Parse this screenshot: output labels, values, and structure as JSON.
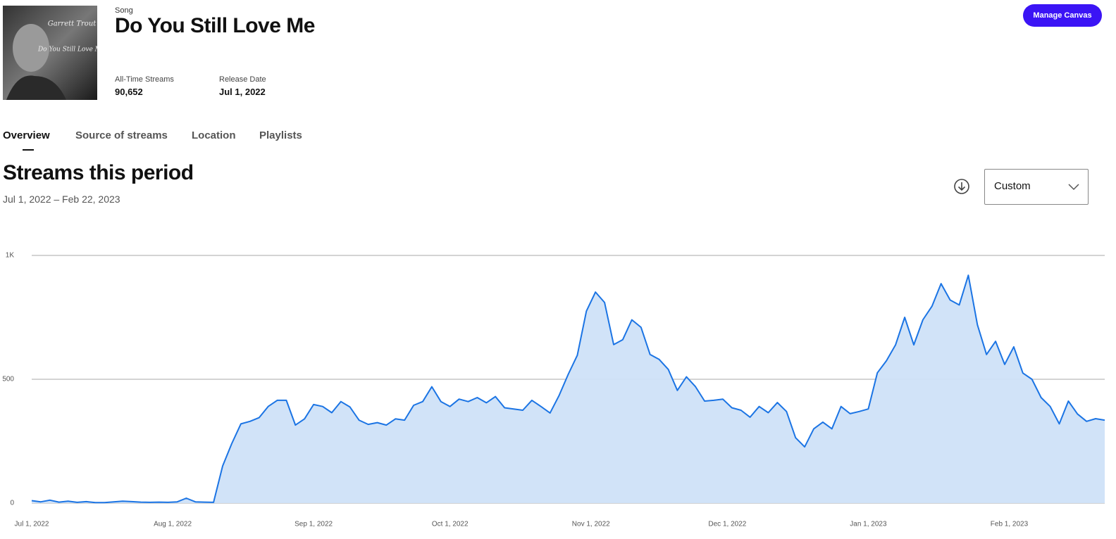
{
  "header": {
    "type_label": "Song",
    "title": "Do You Still Love Me",
    "stats": [
      {
        "label": "All-Time Streams",
        "value": "90,652"
      },
      {
        "label": "Release Date",
        "value": "Jul 1, 2022"
      }
    ],
    "button": "Manage Canvas",
    "album_art": {
      "artist": "Garrett Trout",
      "title": "Do You Still Love Me?"
    }
  },
  "tabs": [
    "Overview",
    "Source of streams",
    "Location",
    "Playlists"
  ],
  "section": {
    "title": "Streams this period",
    "date_range": "Jul 1, 2022 – Feb 22, 2023",
    "range_select": "Custom"
  },
  "chart_data": {
    "type": "area",
    "color": "#1b74e4",
    "area_color": "#cfe2f8",
    "grid": true,
    "xlim": [
      "2022-07-01",
      "2023-02-22"
    ],
    "xticks": [
      {
        "value": "2022-07-01",
        "label": "Jul 1, 2022"
      },
      {
        "value": "2022-08-01",
        "label": "Aug 1, 2022"
      },
      {
        "value": "2022-09-01",
        "label": "Sep 1, 2022"
      },
      {
        "value": "2022-10-01",
        "label": "Oct 1, 2022"
      },
      {
        "value": "2022-11-01",
        "label": "Nov 1, 2022"
      },
      {
        "value": "2022-12-01",
        "label": "Dec 1, 2022"
      },
      {
        "value": "2023-01-01",
        "label": "Jan 1, 2023"
      },
      {
        "value": "2023-02-01",
        "label": "Feb 1, 2023"
      }
    ],
    "ylim": [
      0,
      1000
    ],
    "yticks": [
      0,
      500,
      {
        "value": 1000,
        "label": "1K"
      }
    ],
    "x": [
      "2022-07-01",
      "2022-07-03",
      "2022-07-05",
      "2022-07-07",
      "2022-07-09",
      "2022-07-11",
      "2022-07-13",
      "2022-07-15",
      "2022-07-17",
      "2022-07-19",
      "2022-07-21",
      "2022-07-23",
      "2022-07-25",
      "2022-07-27",
      "2022-07-29",
      "2022-07-31",
      "2022-08-02",
      "2022-08-04",
      "2022-08-06",
      "2022-08-08",
      "2022-08-10",
      "2022-08-12",
      "2022-08-14",
      "2022-08-16",
      "2022-08-18",
      "2022-08-20",
      "2022-08-22",
      "2022-08-24",
      "2022-08-26",
      "2022-08-28",
      "2022-08-30",
      "2022-09-01",
      "2022-09-03",
      "2022-09-05",
      "2022-09-07",
      "2022-09-09",
      "2022-09-11",
      "2022-09-13",
      "2022-09-15",
      "2022-09-17",
      "2022-09-19",
      "2022-09-21",
      "2022-09-23",
      "2022-09-25",
      "2022-09-27",
      "2022-09-29",
      "2022-10-01",
      "2022-10-03",
      "2022-10-05",
      "2022-10-07",
      "2022-10-09",
      "2022-10-11",
      "2022-10-13",
      "2022-10-15",
      "2022-10-17",
      "2022-10-19",
      "2022-10-21",
      "2022-10-23",
      "2022-10-25",
      "2022-10-27",
      "2022-10-29",
      "2022-10-31",
      "2022-11-02",
      "2022-11-04",
      "2022-11-06",
      "2022-11-08",
      "2022-11-10",
      "2022-11-12",
      "2022-11-14",
      "2022-11-16",
      "2022-11-18",
      "2022-11-20",
      "2022-11-22",
      "2022-11-24",
      "2022-11-26",
      "2022-11-28",
      "2022-11-30",
      "2022-12-02",
      "2022-12-04",
      "2022-12-06",
      "2022-12-08",
      "2022-12-10",
      "2022-12-12",
      "2022-12-14",
      "2022-12-16",
      "2022-12-18",
      "2022-12-20",
      "2022-12-22",
      "2022-12-24",
      "2022-12-26",
      "2022-12-28",
      "2022-12-30",
      "2023-01-01",
      "2023-01-03",
      "2023-01-05",
      "2023-01-07",
      "2023-01-09",
      "2023-01-11",
      "2023-01-13",
      "2023-01-15",
      "2023-01-17",
      "2023-01-19",
      "2023-01-21",
      "2023-01-23",
      "2023-01-25",
      "2023-01-27",
      "2023-01-29",
      "2023-01-31",
      "2023-02-02",
      "2023-02-04",
      "2023-02-06",
      "2023-02-08",
      "2023-02-10",
      "2023-02-12",
      "2023-02-14",
      "2023-02-16",
      "2023-02-18",
      "2023-02-20",
      "2023-02-22"
    ],
    "values": [
      10,
      5,
      12,
      4,
      8,
      3,
      6,
      2,
      2,
      5,
      8,
      6,
      4,
      3,
      4,
      3,
      5,
      20,
      5,
      4,
      3,
      150,
      240,
      320,
      330,
      345,
      390,
      415,
      415,
      315,
      340,
      398,
      390,
      365,
      410,
      388,
      335,
      318,
      325,
      315,
      340,
      335,
      395,
      410,
      470,
      410,
      390,
      420,
      410,
      426,
      405,
      430,
      385,
      380,
      375,
      415,
      390,
      364,
      435,
      520,
      597,
      775,
      852,
      810,
      640,
      660,
      740,
      710,
      600,
      580,
      540,
      455,
      510,
      470,
      412,
      415,
      420,
      385,
      375,
      347,
      390,
      365,
      406,
      370,
      264,
      227,
      300,
      327,
      300,
      390,
      361,
      370,
      380,
      526,
      575,
      639,
      750,
      639,
      740,
      795,
      886,
      820,
      800,
      920,
      720,
      600,
      653,
      560,
      631,
      525,
      500,
      426,
      390,
      320,
      412,
      360,
      330,
      341,
      335
    ]
  }
}
